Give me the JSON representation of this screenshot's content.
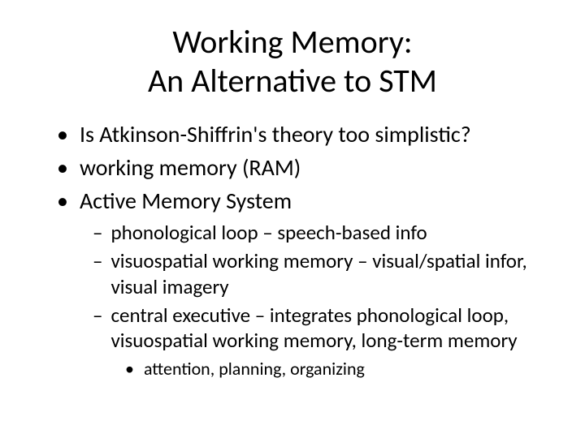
{
  "title_line1": "Working Memory:",
  "title_line2": "An Alternative to STM",
  "bullets": {
    "l1_1": "Is Atkinson-Shiffrin's theory too simplistic?",
    "l1_2": "working memory (RAM)",
    "l1_3": "Active Memory System",
    "l2_1": "phonological loop – speech-based info",
    "l2_2": "visuospatial working memory – visual/spatial infor, visual imagery",
    "l2_3": "central executive – integrates phonological loop, visuospatial working memory, long-term memory",
    "l3_1": "attention, planning, organizing"
  },
  "styling": {
    "background_color": "#ffffff",
    "text_color": "#000000",
    "title_fontsize": 40,
    "l1_fontsize": 28,
    "l2_fontsize": 25,
    "l3_fontsize": 22,
    "font_family": "Calibri",
    "l1_marker": "•",
    "l2_marker": "–",
    "l3_marker": "•"
  }
}
